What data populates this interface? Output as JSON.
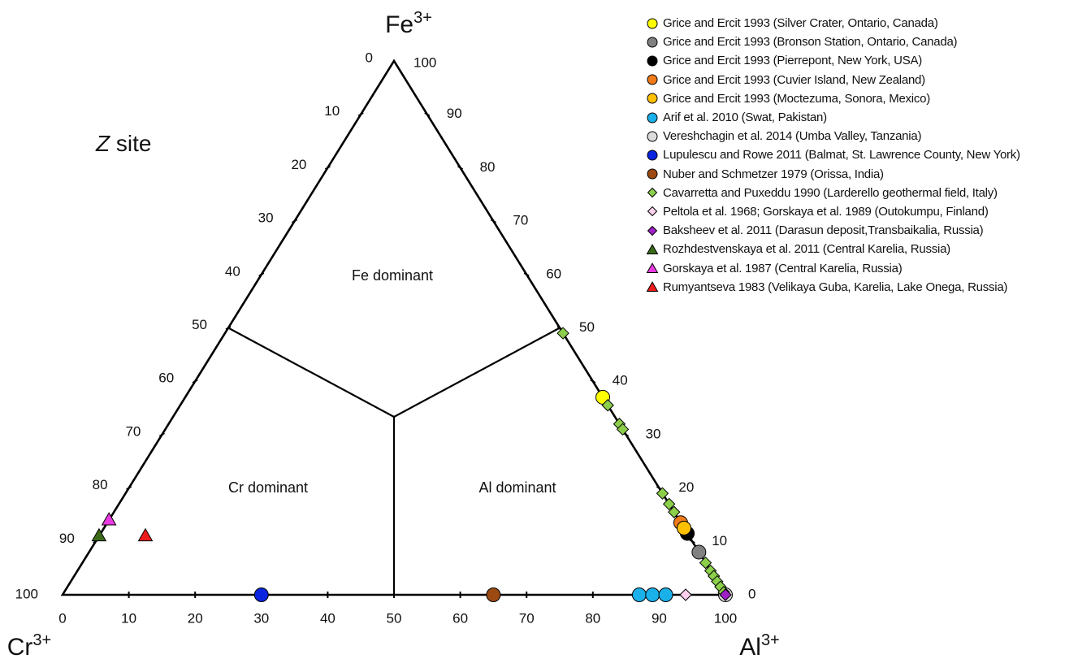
{
  "chart_data": {
    "type": "ternary-scatter",
    "vertices": {
      "top": "Fe",
      "left": "Cr",
      "right": "Al",
      "superscript": "3+"
    },
    "site_label": {
      "italic": "Z",
      "rest": " site"
    },
    "ticks": [
      0,
      10,
      20,
      30,
      40,
      50,
      60,
      70,
      80,
      90,
      100
    ],
    "regions": [
      "Fe dominant",
      "Cr dominant",
      "Al dominant"
    ],
    "series": [
      {
        "name": "Grice and Ercit 1993 (Silver Crater, Ontario, Canada)",
        "marker": "circle",
        "color": "#ffff00",
        "points": [
          {
            "Fe": 37,
            "Al": 63,
            "Cr": 0
          }
        ]
      },
      {
        "name": "Grice and Ercit 1993 (Bronson Station, Ontario, Canada)",
        "marker": "circle",
        "color": "#808080",
        "points": [
          {
            "Fe": 8,
            "Al": 92,
            "Cr": 0
          }
        ]
      },
      {
        "name": "Grice and Ercit 1993 (Pierrepont, New York, USA)",
        "marker": "circle",
        "color": "#000000",
        "points": [
          {
            "Fe": 11.5,
            "Al": 88.5,
            "Cr": 0
          }
        ]
      },
      {
        "name": "Grice and Ercit 1993 (Cuvier Island, New Zealand)",
        "marker": "circle",
        "color": "#f07a1a",
        "points": [
          {
            "Fe": 13.5,
            "Al": 86.5,
            "Cr": 0
          }
        ]
      },
      {
        "name": "Grice and Ercit 1993 (Moctezuma, Sonora, Mexico)",
        "marker": "circle",
        "color": "#ffc000",
        "points": [
          {
            "Fe": 12.5,
            "Al": 87.5,
            "Cr": 0
          }
        ]
      },
      {
        "name": "Arif et al. 2010 (Swat, Pakistan)",
        "marker": "circle",
        "color": "#1ab0ea",
        "points": [
          {
            "Fe": 0,
            "Al": 87,
            "Cr": 13
          },
          {
            "Fe": 0,
            "Al": 89,
            "Cr": 11
          },
          {
            "Fe": 0,
            "Al": 91,
            "Cr": 9
          }
        ]
      },
      {
        "name": "Vereshchagin et al. 2014 (Umba Valley, Tanzania)",
        "marker": "circle",
        "color": "#dcdcdc",
        "points": [
          {
            "Fe": 0,
            "Al": 100,
            "Cr": 0
          }
        ]
      },
      {
        "name": "Lupulescu and Rowe 2011 (Balmat, St. Lawrence County, New York)",
        "marker": "circle",
        "color": "#0a24e0",
        "points": [
          {
            "Fe": 0,
            "Al": 30,
            "Cr": 70
          }
        ]
      },
      {
        "name": "Nuber and Schmetzer 1979 (Orissa, India)",
        "marker": "circle",
        "color": "#9c4a12",
        "points": [
          {
            "Fe": 0,
            "Al": 65,
            "Cr": 35
          }
        ]
      },
      {
        "name": "Cavarretta and Puxeddu 1990 (Larderello geothermal field, Italy)",
        "marker": "diamond",
        "color": "#8ccf4a",
        "points": [
          {
            "Fe": 49,
            "Al": 51,
            "Cr": 0
          },
          {
            "Fe": 35.5,
            "Al": 64.5,
            "Cr": 0
          },
          {
            "Fe": 32,
            "Al": 68,
            "Cr": 0
          },
          {
            "Fe": 31,
            "Al": 69,
            "Cr": 0
          },
          {
            "Fe": 19,
            "Al": 81,
            "Cr": 0
          },
          {
            "Fe": 17,
            "Al": 83,
            "Cr": 0
          },
          {
            "Fe": 15.5,
            "Al": 84.5,
            "Cr": 0
          },
          {
            "Fe": 6,
            "Al": 94,
            "Cr": 0
          },
          {
            "Fe": 4.5,
            "Al": 95.5,
            "Cr": 0
          },
          {
            "Fe": 3.5,
            "Al": 96.5,
            "Cr": 0
          },
          {
            "Fe": 2.5,
            "Al": 97.5,
            "Cr": 0
          },
          {
            "Fe": 1.5,
            "Al": 98.5,
            "Cr": 0
          },
          {
            "Fe": 0.5,
            "Al": 99.5,
            "Cr": 0
          }
        ]
      },
      {
        "name": "Peltola et al. 1968; Gorskaya et al. 1989 (Outokumpu, Finland)",
        "marker": "diamond",
        "color": "#ffd0ee",
        "points": [
          {
            "Fe": 0,
            "Al": 94,
            "Cr": 6
          }
        ]
      },
      {
        "name": "Baksheev et al. 2011 (Darasun deposit,Transbaikalia, Russia)",
        "marker": "diamond",
        "color": "#a020c8",
        "points": [
          {
            "Fe": 0,
            "Al": 100,
            "Cr": 0
          }
        ]
      },
      {
        "name": "Rozhdestvenskaya et al. 2011 (Central Karelia, Russia)",
        "marker": "triangle",
        "color": "#3a6a18",
        "points": [
          {
            "Fe": 11,
            "Al": 0,
            "Cr": 89
          }
        ]
      },
      {
        "name": "Gorskaya et al. 1987 (Central Karelia, Russia)",
        "marker": "triangle",
        "color": "#e83ae0",
        "points": [
          {
            "Fe": 14,
            "Al": 0,
            "Cr": 86
          }
        ]
      },
      {
        "name": "Rumyantseva 1983 (Velikaya Guba, Karelia, Lake Onega, Russia)",
        "marker": "triangle",
        "color": "#ee1c1c",
        "points": [
          {
            "Fe": 11,
            "Al": 7,
            "Cr": 82
          }
        ]
      }
    ]
  }
}
